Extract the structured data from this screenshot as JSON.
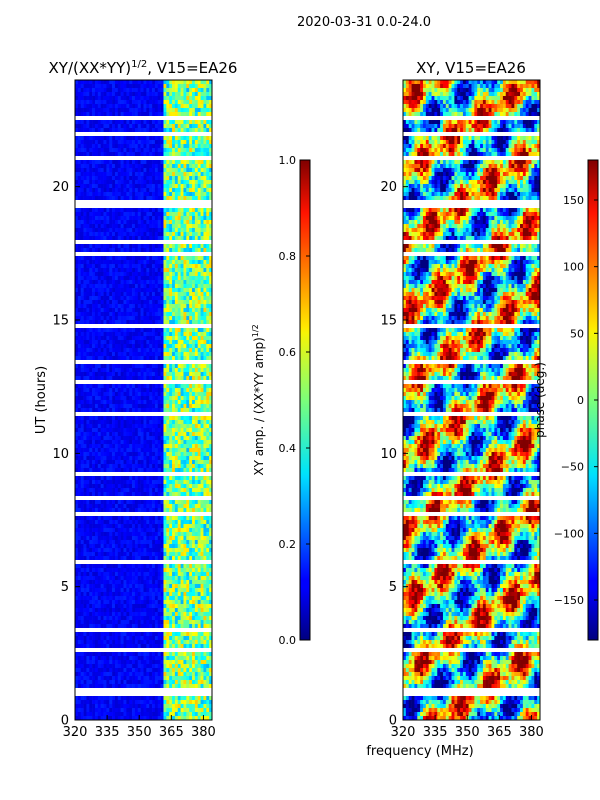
{
  "suptitle": "2020-03-31 0.0-24.0",
  "colors": {
    "background": "#ffffff",
    "axis": "#000000",
    "gap": "#ffffff"
  },
  "chart_data": [
    {
      "type": "heatmap",
      "title_main": "XY/(XX*YY)",
      "title_exp": "1/2",
      "title_rest": ", V15=EA26",
      "xlabel": "",
      "ylabel": "UT (hours)",
      "xlim": [
        320,
        384
      ],
      "ylim": [
        0,
        24
      ],
      "xticks": [
        320,
        335,
        350,
        365,
        380
      ],
      "yticks": [
        0,
        5,
        10,
        15,
        20
      ],
      "colormap": "jet",
      "clim": [
        0.0,
        1.0
      ],
      "colorbar": {
        "label_main": "XY amp. / (XX*YY amp)",
        "label_exp": "1/2",
        "ticks": [
          "0.0",
          "0.2",
          "0.4",
          "0.6",
          "0.8",
          "1.0"
        ],
        "tick_values": [
          0.0,
          0.2,
          0.4,
          0.6,
          0.8,
          1.0
        ]
      },
      "value_description": "low (~0.05) below 361 MHz; ~0.4-0.6 between 361 and 382 MHz"
    },
    {
      "type": "heatmap",
      "title_main": "XY, V15=EA26",
      "xlabel": "frequency (MHz)",
      "ylabel": "",
      "xlim": [
        320,
        384
      ],
      "ylim": [
        0,
        24
      ],
      "xticks": [
        320,
        335,
        350,
        365,
        380
      ],
      "yticks": [
        0,
        5,
        10,
        15,
        20
      ],
      "colormap": "jet",
      "clim": [
        -180,
        180
      ],
      "colorbar": {
        "label_main": "phase (deg.)",
        "ticks": [
          "150",
          "100",
          "50",
          "0",
          "−50",
          "−100",
          "−150"
        ],
        "tick_values": [
          150,
          100,
          50,
          0,
          -50,
          -100,
          -150
        ]
      },
      "value_description": "phase in degrees, -180 to 180"
    }
  ],
  "flagged_gaps_hours": [
    [
      0.9,
      1.15
    ],
    [
      2.6,
      2.72
    ],
    [
      3.35,
      3.45
    ],
    [
      4.75,
      4.85
    ],
    [
      5.85,
      5.95
    ],
    [
      7.15,
      7.25
    ],
    [
      7.7,
      7.8
    ],
    [
      8.3,
      8.4
    ],
    [
      9.2,
      9.3
    ],
    [
      10.65,
      10.72
    ],
    [
      11.45,
      11.52
    ],
    [
      12.6,
      12.68
    ],
    [
      13.35,
      13.5
    ],
    [
      14.05,
      14.12
    ],
    [
      14.75,
      14.82
    ],
    [
      15.55,
      15.62
    ],
    [
      16.3,
      16.4
    ],
    [
      17.45,
      17.55
    ],
    [
      17.85,
      17.95
    ],
    [
      19.2,
      19.45
    ],
    [
      21.05,
      21.12
    ],
    [
      21.4,
      21.48
    ],
    [
      21.9,
      22.05
    ],
    [
      22.55,
      22.62
    ],
    [
      23.05,
      23.12
    ]
  ]
}
